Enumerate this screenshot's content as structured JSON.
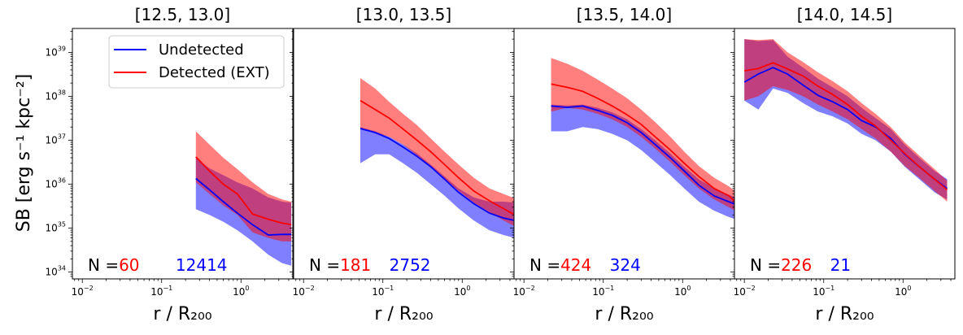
{
  "chart_data": {
    "type": "line",
    "ylabel": "SB [erg s⁻¹ kpc⁻²]",
    "xlabel": "r / R₂₀₀",
    "x_scale": "log",
    "y_scale": "log",
    "xlim": [
      0.0075,
      4.5
    ],
    "ylim": [
      7e+33,
      3.5e+39
    ],
    "x_ticks": [
      {
        "value": 0.01,
        "base": "10",
        "exp": "−2"
      },
      {
        "value": 0.1,
        "base": "10",
        "exp": "−1"
      },
      {
        "value": 1,
        "base": "10",
        "exp": "0"
      }
    ],
    "y_ticks": [
      {
        "value": 1e+34,
        "base": "10",
        "exp": "34"
      },
      {
        "value": 1e+35,
        "base": "10",
        "exp": "35"
      },
      {
        "value": 1e+36,
        "base": "10",
        "exp": "36"
      },
      {
        "value": 1e+37,
        "base": "10",
        "exp": "37"
      },
      {
        "value": 1e+38,
        "base": "10",
        "exp": "38"
      },
      {
        "value": 1e+39,
        "base": "10",
        "exp": "39"
      }
    ],
    "legend": [
      {
        "label": "Undetected",
        "color": "#0000ff"
      },
      {
        "label": "Detected (EXT)",
        "color": "#ff0000"
      }
    ],
    "count_prefix": "N =",
    "panels": [
      {
        "title": "[12.5, 13.0]",
        "n_detected": "60",
        "n_undetected": "12414",
        "undetected": {
          "x": [
            0.27,
            0.4,
            0.6,
            0.9,
            1.4,
            2.2,
            3.3,
            4.3
          ],
          "y": [
            1.35e+36,
            7.5e+35,
            4e+35,
            2.2e+35,
            1.2e+35,
            7e+34,
            7.2e+34,
            7.2e+34
          ],
          "lo": [
            2.7e+35,
            2e+35,
            1.4e+35,
            9e+34,
            5e+34,
            2.5e+34,
            1.6e+34,
            1.4e+34
          ],
          "hi": [
            4e+36,
            2.3e+36,
            1.6e+36,
            1.1e+36,
            8e+35,
            5e+35,
            4e+35,
            3.8e+35
          ]
        },
        "detected": {
          "x": [
            0.27,
            0.4,
            0.6,
            0.9,
            1.4,
            2.2,
            3.3,
            4.3
          ],
          "y": [
            4.2e+36,
            2e+36,
            1e+36,
            6e+35,
            2.1e+35,
            1.6e+35,
            1.3e+35,
            1.2e+35
          ],
          "lo": [
            1.1e+36,
            6e+35,
            3.3e+35,
            2e+35,
            8e+34,
            6e+34,
            5e+34,
            5e+34
          ],
          "hi": [
            1.6e+37,
            8e+36,
            4e+36,
            2.2e+36,
            1.1e+36,
            6e+35,
            4.5e+35,
            4e+35
          ]
        }
      },
      {
        "title": "[13.0, 13.5]",
        "n_detected": "181",
        "n_undetected": "2752",
        "undetected": {
          "x": [
            0.052,
            0.08,
            0.12,
            0.18,
            0.27,
            0.4,
            0.6,
            0.9,
            1.4,
            2.2,
            3.3,
            4.6
          ],
          "y": [
            1.85e+37,
            1.5e+37,
            1.1e+37,
            7e+36,
            4.3e+36,
            2.5e+36,
            1.3e+36,
            6.5e+35,
            3.6e+35,
            2.2e+35,
            1.7e+35,
            1.5e+35
          ],
          "lo": [
            3e+36,
            4.8e+36,
            4.8e+36,
            3e+36,
            1.8e+36,
            1e+36,
            5.5e+35,
            2.8e+35,
            1.5e+35,
            9e+34,
            7e+34,
            6e+34
          ],
          "hi": [
            2e+37,
            1.6e+37,
            1.2e+37,
            8e+36,
            5e+36,
            2.8e+36,
            1.5e+36,
            8e+35,
            5e+35,
            4e+35,
            4e+35,
            3.8e+35
          ]
        },
        "detected": {
          "x": [
            0.052,
            0.08,
            0.12,
            0.18,
            0.27,
            0.4,
            0.6,
            0.9,
            1.4,
            2.2,
            3.3,
            4.6
          ],
          "y": [
            8e+37,
            5e+37,
            3.2e+37,
            1.8e+37,
            1e+37,
            5.5e+36,
            2.8e+36,
            1.4e+36,
            7e+35,
            4.2e+35,
            2.8e+35,
            2e+35
          ],
          "lo": [
            1.8e+37,
            1.5e+37,
            1.2e+37,
            8e+36,
            4.5e+36,
            2.5e+36,
            1.3e+36,
            7e+35,
            3.8e+35,
            2.3e+35,
            1.5e+35,
            1.1e+35
          ],
          "hi": [
            2.6e+38,
            1.5e+38,
            7.5e+37,
            4e+37,
            2.2e+37,
            1.1e+37,
            5.5e+36,
            2.8e+36,
            1.4e+36,
            8e+35,
            6e+35,
            4.8e+35
          ]
        }
      },
      {
        "title": "[13.5, 14.0]",
        "n_detected": "424",
        "n_undetected": "324",
        "undetected": {
          "x": [
            0.022,
            0.035,
            0.055,
            0.085,
            0.13,
            0.2,
            0.3,
            0.45,
            0.7,
            1.05,
            1.6,
            2.5,
            3.8,
            4.6
          ],
          "y": [
            6e+37,
            5.6e+37,
            6e+37,
            4.8e+37,
            3.7e+37,
            2.5e+37,
            1.5e+37,
            8e+36,
            4e+36,
            2e+36,
            9.5e+35,
            5.4e+35,
            4e+35,
            3.5e+35
          ],
          "lo": [
            1.6e+37,
            1.6e+37,
            2e+37,
            1.8e+37,
            1.4e+37,
            1e+37,
            6e+36,
            3.2e+36,
            1.6e+36,
            8e+35,
            4e+35,
            2.5e+35,
            1.8e+35,
            1.6e+35
          ],
          "hi": [
            6.5e+37,
            6.2e+37,
            6.5e+37,
            5.5e+37,
            4.3e+37,
            3e+37,
            1.8e+37,
            1e+37,
            5e+36,
            2.5e+36,
            1.3e+36,
            8e+35,
            5.8e+35,
            5e+35
          ]
        },
        "detected": {
          "x": [
            0.022,
            0.035,
            0.055,
            0.085,
            0.13,
            0.2,
            0.3,
            0.45,
            0.7,
            1.05,
            1.6,
            2.5,
            3.8,
            4.6
          ],
          "y": [
            1.9e+38,
            1.6e+38,
            1.3e+38,
            9e+37,
            6e+37,
            3.8e+37,
            2.3e+37,
            1.2e+37,
            6e+36,
            3e+36,
            1.5e+36,
            8e+35,
            5.5e+35,
            4e+35
          ],
          "lo": [
            4.5e+37,
            5.5e+37,
            5e+37,
            4e+37,
            3e+37,
            2e+37,
            1.2e+37,
            6.5e+36,
            3.2e+36,
            1.6e+36,
            8e+35,
            4.5e+35,
            3e+35,
            2.5e+35
          ],
          "hi": [
            7.5e+38,
            5.5e+38,
            3.8e+38,
            2.4e+38,
            1.5e+38,
            9e+37,
            5e+37,
            2.6e+37,
            1.2e+37,
            5.5e+36,
            2.6e+36,
            1.4e+36,
            9e+35,
            7e+35
          ]
        }
      },
      {
        "title": "[14.0, 14.5]",
        "n_detected": "226",
        "n_undetected": "21",
        "undetected": {
          "x": [
            0.01,
            0.015,
            0.023,
            0.035,
            0.055,
            0.085,
            0.13,
            0.2,
            0.3,
            0.45,
            0.7,
            1.05,
            1.6,
            2.5,
            3.6
          ],
          "y": [
            2.1e+38,
            3.2e+38,
            4.5e+38,
            3.2e+38,
            1.8e+38,
            1.05e+38,
            7.5e+37,
            5e+37,
            2.8e+37,
            2e+37,
            1.1e+37,
            4.8e+36,
            2.5e+36,
            1.3e+36,
            8e+35
          ],
          "lo": [
            8e+37,
            5e+37,
            1.5e+38,
            1.2e+38,
            7e+37,
            4.5e+37,
            3.5e+37,
            2.4e+37,
            1.4e+37,
            1e+37,
            5.5e+36,
            2.5e+36,
            1.3e+36,
            6.5e+35,
            4.5e+35
          ],
          "hi": [
            2e+39,
            1.8e+39,
            1.9e+39,
            8e+38,
            4.5e+38,
            2.5e+38,
            1.6e+38,
            1e+38,
            5.5e+37,
            3.2e+37,
            1.8e+37,
            8e+36,
            4e+36,
            2e+36,
            1.3e+36
          ]
        },
        "detected": {
          "x": [
            0.01,
            0.015,
            0.023,
            0.035,
            0.055,
            0.085,
            0.13,
            0.2,
            0.3,
            0.45,
            0.7,
            1.05,
            1.6,
            2.5,
            3.6
          ],
          "y": [
            3.8e+38,
            4.3e+38,
            5.8e+38,
            4.2e+38,
            2.9e+38,
            1.7e+38,
            1.1e+38,
            6.5e+37,
            3.5e+37,
            2.1e+37,
            1e+37,
            5e+36,
            2.5e+36,
            1.3e+36,
            7.5e+35
          ],
          "lo": [
            8e+37,
            1e+38,
            1.7e+38,
            1.4e+38,
            1e+38,
            6.5e+37,
            4.5e+37,
            3e+37,
            1.8e+37,
            1.1e+37,
            5.5e+36,
            2.6e+36,
            1.4e+36,
            7e+35,
            4e+35
          ],
          "hi": [
            2e+39,
            1.9e+39,
            2e+39,
            1e+39,
            6e+38,
            3.5e+38,
            2.2e+38,
            1.3e+38,
            7e+37,
            4e+37,
            2e+37,
            9e+36,
            4.5e+36,
            2.2e+36,
            1.2e+36
          ]
        }
      }
    ]
  }
}
